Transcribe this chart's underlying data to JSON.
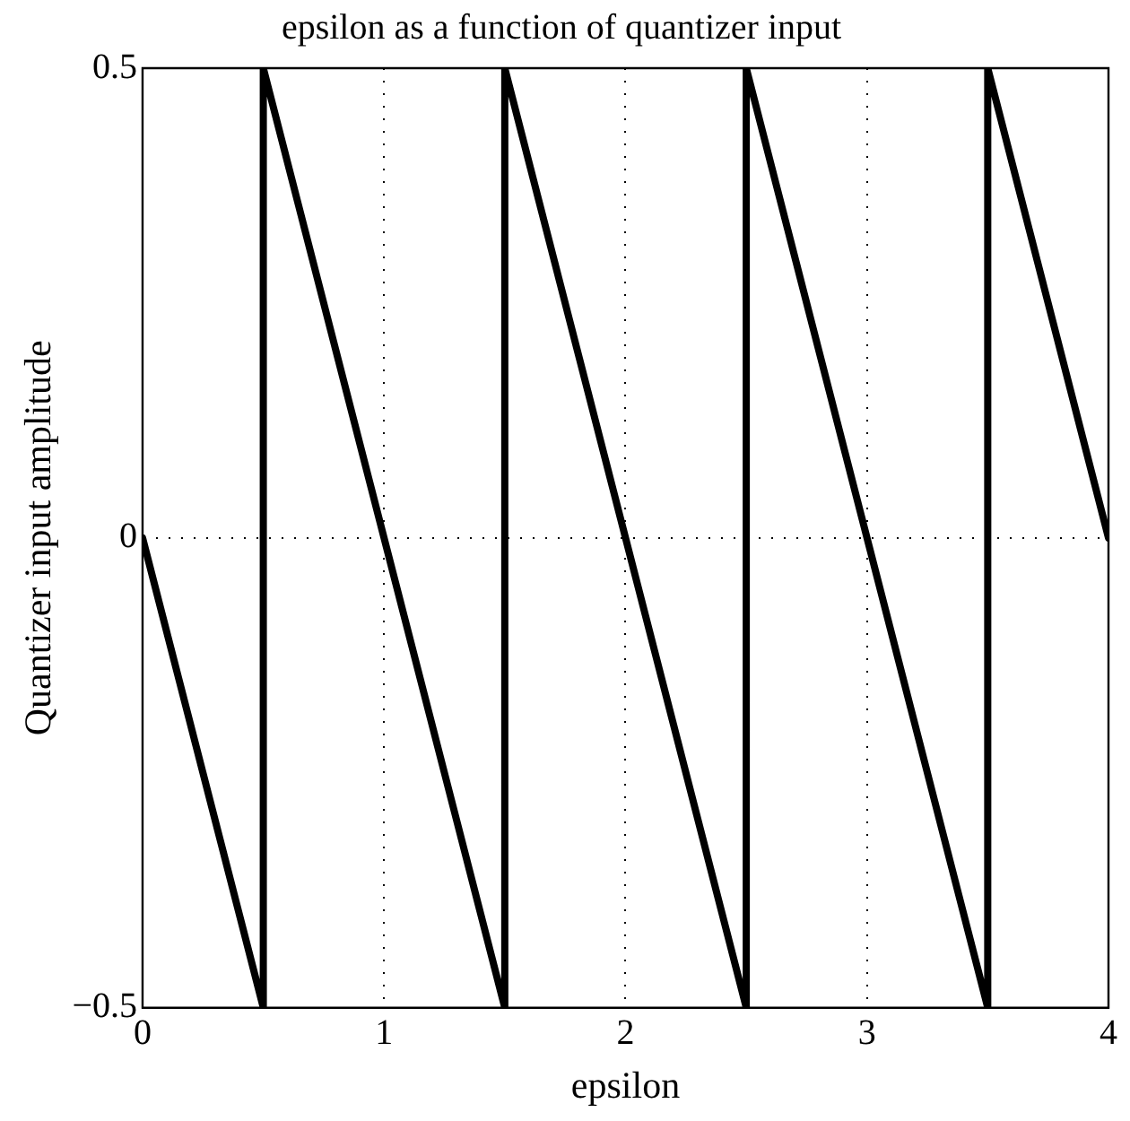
{
  "chart_data": {
    "type": "line",
    "title": "epsilon as a function of quantizer input",
    "xlabel": "epsilon",
    "ylabel": "Quantizer input amplitude",
    "x": [
      0,
      0.5,
      0.5,
      1.5,
      1.5,
      2.5,
      2.5,
      3.5,
      3.5,
      4
    ],
    "series": [
      {
        "color": "#000000",
        "values": [
          0,
          -0.5,
          0.5,
          -0.5,
          0.5,
          -0.5,
          0.5,
          -0.5,
          0.5,
          0
        ]
      }
    ],
    "xlim": [
      0,
      4
    ],
    "xticks": [
      0,
      1,
      2,
      3,
      4
    ],
    "ylim": [
      -0.5,
      0.5
    ],
    "yticks": [
      {
        "value": -0.5,
        "label": "−0.5"
      },
      0,
      0.5
    ],
    "grid": true,
    "legend": false,
    "marker": "none",
    "line_style": "solid"
  }
}
